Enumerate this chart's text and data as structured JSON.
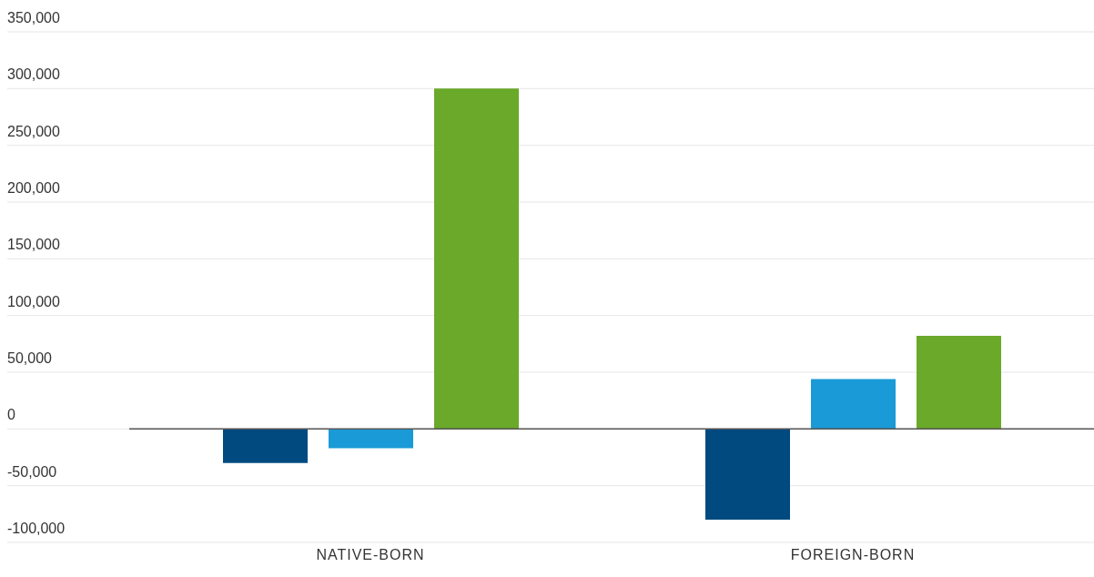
{
  "chart_data": {
    "type": "bar",
    "categories": [
      "NATIVE-BORN",
      "FOREIGN-BORN"
    ],
    "series": [
      {
        "color": "#004a80",
        "values": [
          -30000,
          -80000
        ]
      },
      {
        "color": "#1a9ad6",
        "values": [
          -17000,
          44000
        ]
      },
      {
        "color": "#6aa92a",
        "values": [
          300000,
          82000
        ]
      }
    ],
    "ylim": [
      -100000,
      350000
    ],
    "yticks": [
      {
        "value": -100000,
        "label": "-100,000"
      },
      {
        "value": -50000,
        "label": "-50,000"
      },
      0,
      {
        "value": 50000,
        "label": "50,000"
      },
      {
        "value": 100000,
        "label": "100,000"
      },
      {
        "value": 150000,
        "label": "150,000"
      },
      {
        "value": 200000,
        "label": "200,000"
      },
      {
        "value": 250000,
        "label": "250,000"
      },
      {
        "value": 300000,
        "label": "300,000"
      },
      {
        "value": 350000,
        "label": "350,000"
      }
    ],
    "grid": "y",
    "ref_lines": [
      {
        "axis": "y",
        "value": 0,
        "color": "#555555"
      }
    ]
  }
}
